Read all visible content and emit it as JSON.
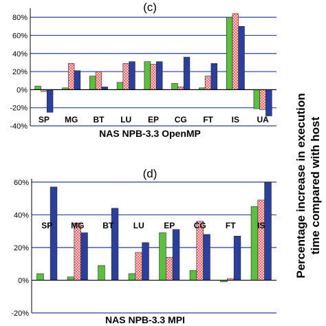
{
  "figure": {
    "side_label_line1": "Percentage increase in execution",
    "side_label_line2": "time compared with host"
  },
  "colors": {
    "series_a": "#5bbf3f",
    "series_b_fill": "#f4c9c9",
    "series_b_dot": "#e0232b",
    "series_c": "#2b3f9c",
    "gridline": "#2b3f9c",
    "axis": "#000000"
  },
  "chart_data": [
    {
      "type": "bar",
      "title": "(c)",
      "xlabel": "NAS NPB-3.3 OpenMP",
      "ylabel": "",
      "categories": [
        "SP",
        "MG",
        "BT",
        "LU",
        "EP",
        "CG",
        "FT",
        "IS",
        "UA"
      ],
      "ylim": [
        -40,
        90
      ],
      "yticks": [
        -40,
        -20,
        0,
        20,
        40,
        60,
        80
      ],
      "ytick_labels": [
        "-40%",
        "-20%",
        "0%",
        "20%",
        "40%",
        "60%",
        "80%"
      ],
      "grid": true,
      "series": [
        {
          "values": [
            4,
            2,
            15,
            8,
            31,
            7,
            2,
            80,
            -21
          ]
        },
        {
          "values": [
            -2,
            29,
            20,
            29,
            28,
            3,
            15,
            84,
            -22
          ]
        },
        {
          "values": [
            -25,
            21,
            3,
            31,
            31,
            36,
            29,
            70,
            -29
          ]
        }
      ]
    },
    {
      "type": "bar",
      "title": "(d)",
      "xlabel": "NAS NPB-3.3 MPI",
      "ylabel": "",
      "categories": [
        "SP",
        "MG",
        "BT",
        "LU",
        "EP",
        "CG",
        "FT",
        "IS"
      ],
      "ylim": [
        -20,
        62
      ],
      "yticks": [
        -20,
        0,
        20,
        40,
        60
      ],
      "ytick_labels": [
        "-20%",
        "0%",
        "20%",
        "40%",
        "60%"
      ],
      "grid": true,
      "series": [
        {
          "values": [
            4,
            2,
            9,
            4,
            29,
            6,
            -1,
            45
          ]
        },
        {
          "values": [
            0,
            35,
            0,
            17,
            14,
            36,
            1,
            49
          ]
        },
        {
          "values": [
            57,
            29,
            44,
            23,
            31,
            28,
            27,
            60
          ]
        }
      ]
    }
  ]
}
